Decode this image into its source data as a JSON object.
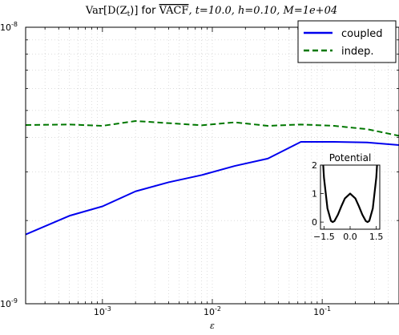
{
  "chart_data": {
    "type": "line",
    "title_prefix": "Var[D(Z",
    "title_sub_t": "t",
    "title_mid": ")] for ",
    "title_vacf": "VACF",
    "title_params": ", t=10.0, h=0.10, M=1e+04",
    "xlabel": "ε",
    "x_scale": "log",
    "y_scale": "log",
    "xlim": [
      0.0002,
      0.5
    ],
    "ylim": [
      1e-09,
      1e-08
    ],
    "grid": true,
    "legend_position": "top-right",
    "x_ticks": [
      {
        "value": 0.001,
        "base": "10",
        "exp": "-3"
      },
      {
        "value": 0.01,
        "base": "10",
        "exp": "-2"
      },
      {
        "value": 0.1,
        "base": "10",
        "exp": "-1"
      }
    ],
    "y_ticks": [
      {
        "value": 1e-08,
        "base": "10",
        "exp": "-8"
      },
      {
        "value": 1e-09,
        "base": "10",
        "exp": "-9"
      }
    ],
    "x": [
      0.0002,
      0.0005,
      0.001,
      0.002,
      0.004,
      0.008,
      0.016,
      0.032,
      0.064,
      0.128,
      0.256,
      0.5
    ],
    "series": [
      {
        "name": "coupled",
        "color": "#0000ee",
        "dash": "solid",
        "values": [
          1.78e-09,
          2.08e-09,
          2.25e-09,
          2.55e-09,
          2.75e-09,
          2.92e-09,
          3.15e-09,
          3.35e-09,
          3.85e-09,
          3.85e-09,
          3.83e-09,
          3.75e-09
        ]
      },
      {
        "name": "indep.",
        "color": "#007700",
        "dash": "dashed",
        "values": [
          4.43e-09,
          4.45e-09,
          4.4e-09,
          4.58e-09,
          4.5e-09,
          4.42e-09,
          4.53e-09,
          4.4e-09,
          4.45e-09,
          4.4e-09,
          4.28e-09,
          4.05e-09
        ]
      }
    ],
    "inset": {
      "type": "line",
      "title": "Potential",
      "function": "double-well (x^2 - 1)^2",
      "xlim": [
        -1.7,
        1.7
      ],
      "ylim": [
        -0.25,
        2.0
      ],
      "x_ticks": [
        "−1.5",
        "0.0",
        "1.5"
      ],
      "x_tick_values": [
        -1.5,
        0.0,
        1.5
      ],
      "y_ticks": [
        "0",
        "1",
        "2"
      ],
      "y_tick_values": [
        0,
        1,
        2
      ],
      "x": [
        -1.7,
        -1.5,
        -1.3,
        -1.1,
        -1.0,
        -0.9,
        -0.7,
        -0.5,
        -0.3,
        0.0,
        0.3,
        0.5,
        0.7,
        0.9,
        1.0,
        1.1,
        1.3,
        1.5,
        1.7
      ],
      "y": [
        3.57,
        1.56,
        0.48,
        0.044,
        0.0,
        0.036,
        0.26,
        0.56,
        0.83,
        1.0,
        0.83,
        0.56,
        0.26,
        0.036,
        0.0,
        0.044,
        0.48,
        1.56,
        3.57
      ],
      "color": "#000000"
    }
  }
}
